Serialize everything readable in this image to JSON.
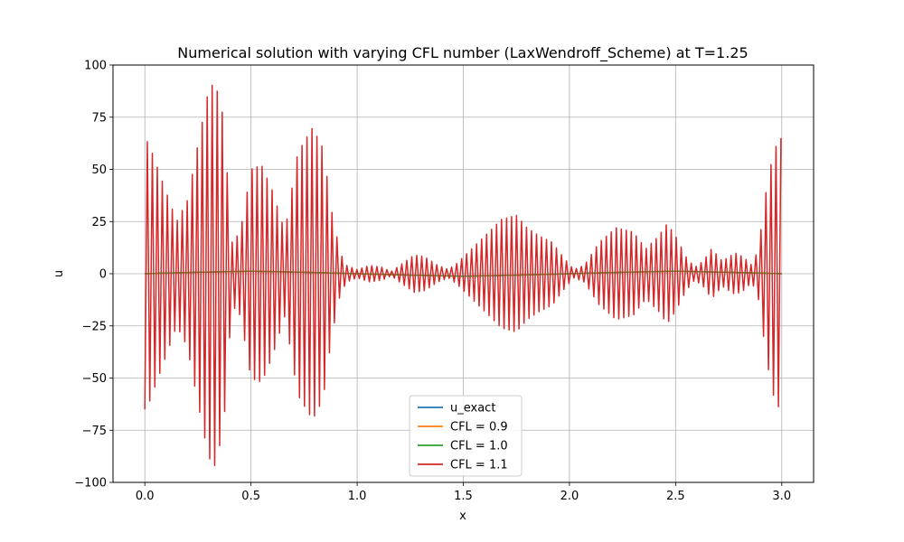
{
  "chart_data": {
    "type": "line",
    "title": "Numerical solution with varying CFL number (LaxWendroff_Scheme) at T=1.25",
    "xlabel": "x",
    "ylabel": "u",
    "xlim": [
      -0.15,
      3.15
    ],
    "ylim": [
      -100,
      100
    ],
    "xticks": [
      0.0,
      0.5,
      1.0,
      1.5,
      2.0,
      2.5,
      3.0
    ],
    "xtick_labels": [
      "0.0",
      "0.5",
      "1.0",
      "1.5",
      "2.0",
      "2.5",
      "3.0"
    ],
    "yticks": [
      -100,
      -75,
      -50,
      -25,
      0,
      25,
      50,
      75,
      100
    ],
    "ytick_labels": [
      "−100",
      "−75",
      "−50",
      "−25",
      "0",
      "25",
      "50",
      "75",
      "100"
    ],
    "grid": true,
    "legend_position": "lower-center",
    "oscillation": {
      "period": 0.0235,
      "envelope": {
        "x": [
          0.0,
          0.02,
          0.08,
          0.15,
          0.2,
          0.25,
          0.3,
          0.33,
          0.37,
          0.41,
          0.45,
          0.5,
          0.55,
          0.6,
          0.66,
          0.72,
          0.79,
          0.84,
          0.88,
          0.92,
          0.95,
          1.0,
          1.06,
          1.12,
          1.16,
          1.2,
          1.27,
          1.32,
          1.38,
          1.43,
          1.47,
          1.52,
          1.6,
          1.68,
          1.75,
          1.8,
          1.86,
          1.92,
          1.97,
          2.02,
          2.07,
          2.14,
          2.22,
          2.3,
          2.36,
          2.42,
          2.46,
          2.5,
          2.55,
          2.59,
          2.63,
          2.67,
          2.72,
          2.78,
          2.82,
          2.86,
          2.89,
          2.93,
          2.96,
          2.99
        ],
        "amplitude": [
          65,
          62,
          45,
          25,
          35,
          62,
          88,
          92,
          75,
          15,
          20,
          50,
          52,
          40,
          20,
          58,
          70,
          60,
          30,
          10,
          4,
          2,
          4,
          3,
          1,
          4,
          9,
          8,
          4,
          2,
          5,
          10,
          18,
          26,
          28,
          22,
          18,
          15,
          8,
          2,
          4,
          15,
          22,
          20,
          12,
          18,
          24,
          18,
          8,
          3,
          6,
          12,
          6,
          10,
          8,
          4,
          12,
          42,
          58,
          65
        ]
      }
    },
    "series": [
      {
        "name": "u_exact",
        "color": "#1f77b4",
        "x": [
          0.0,
          0.25,
          0.5,
          0.75,
          1.0,
          1.25,
          1.5,
          1.75,
          2.0,
          2.25,
          2.5,
          2.75,
          3.0
        ],
        "y": [
          0,
          0.7,
          1.2,
          0.7,
          0,
          -0.7,
          -1.2,
          -0.7,
          0,
          0.7,
          1.2,
          0.7,
          0
        ]
      },
      {
        "name": "CFL = 0.9",
        "color": "#ff7f0e",
        "x": [
          0.0,
          0.25,
          0.5,
          0.75,
          1.0,
          1.25,
          1.5,
          1.75,
          2.0,
          2.25,
          2.5,
          2.75,
          3.0
        ],
        "y": [
          0,
          0.7,
          1.2,
          0.7,
          0,
          -0.7,
          -1.2,
          -0.7,
          0,
          0.7,
          1.2,
          0.7,
          0
        ]
      },
      {
        "name": "CFL = 1.0",
        "color": "#2ca02c",
        "x": [
          0.0,
          0.25,
          0.5,
          0.75,
          1.0,
          1.25,
          1.5,
          1.75,
          2.0,
          2.25,
          2.5,
          2.75,
          3.0
        ],
        "y": [
          0,
          0.7,
          1.2,
          0.7,
          0,
          -0.7,
          -1.2,
          -0.7,
          0,
          0.7,
          1.2,
          0.7,
          0
        ]
      },
      {
        "name": "CFL = 1.1",
        "color": "#d62728",
        "x_range": [
          0.0,
          3.0
        ],
        "note_shape": "high-frequency oscillation under envelope"
      }
    ]
  }
}
